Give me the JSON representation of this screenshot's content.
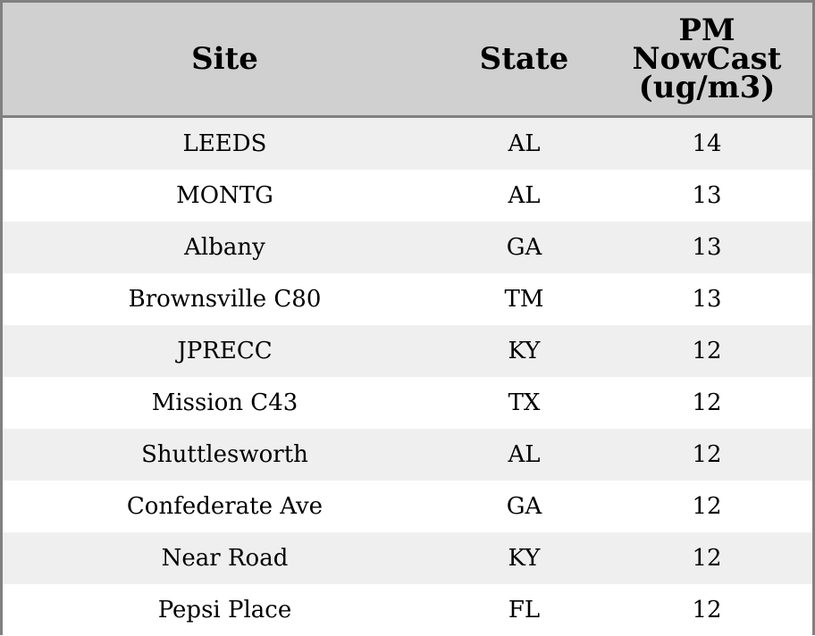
{
  "table": {
    "headers": {
      "site": "Site",
      "state": "State",
      "pm_lines": [
        "PM",
        "NowCast",
        "(ug/m3)"
      ]
    },
    "rows": [
      {
        "site": "LEEDS",
        "state": "AL",
        "pm": "14"
      },
      {
        "site": "MONTG",
        "state": "AL",
        "pm": "13"
      },
      {
        "site": "Albany",
        "state": "GA",
        "pm": "13"
      },
      {
        "site": "Brownsville C80",
        "state": "TM",
        "pm": "13"
      },
      {
        "site": "JPRECC",
        "state": "KY",
        "pm": "12"
      },
      {
        "site": "Mission C43",
        "state": "TX",
        "pm": "12"
      },
      {
        "site": "Shuttlesworth",
        "state": "AL",
        "pm": "12"
      },
      {
        "site": "Confederate Ave",
        "state": "GA",
        "pm": "12"
      },
      {
        "site": "Near Road",
        "state": "KY",
        "pm": "12"
      },
      {
        "site": "Pepsi Place",
        "state": "FL",
        "pm": "12"
      }
    ]
  },
  "colors": {
    "header_bg": "#d0d0d0",
    "row_alt_bg": "#efefef",
    "row_bg": "#ffffff",
    "border": "#808080"
  }
}
